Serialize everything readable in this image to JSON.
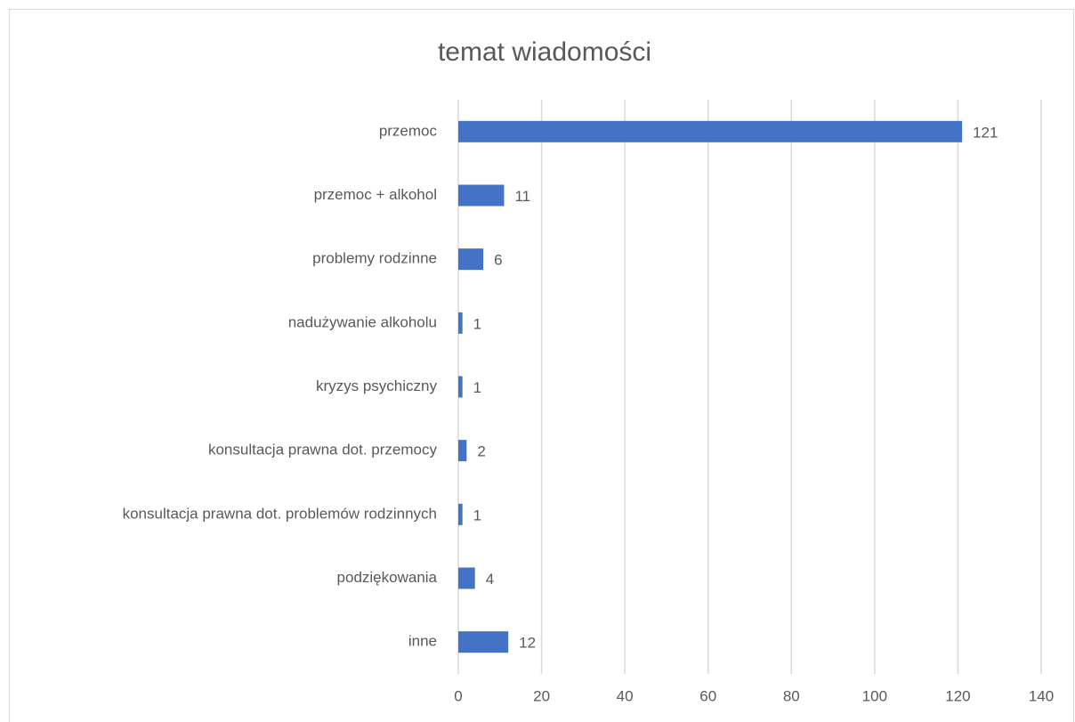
{
  "chart_data": {
    "type": "bar",
    "orientation": "horizontal",
    "title": "temat wiadomości",
    "categories": [
      "przemoc",
      "przemoc + alkohol",
      "problemy rodzinne",
      "nadużywanie alkoholu",
      "kryzys psychiczny",
      "konsultacja prawna dot. przemocy",
      "konsultacja prawna dot. problemów rodzinnych",
      "podziękowania",
      "inne"
    ],
    "values": [
      121,
      11,
      6,
      1,
      1,
      2,
      1,
      4,
      12
    ],
    "color": "#4472c4",
    "xlim": [
      0,
      140
    ],
    "xticks": [
      0,
      20,
      40,
      60,
      80,
      100,
      120,
      140
    ],
    "grid": true
  }
}
